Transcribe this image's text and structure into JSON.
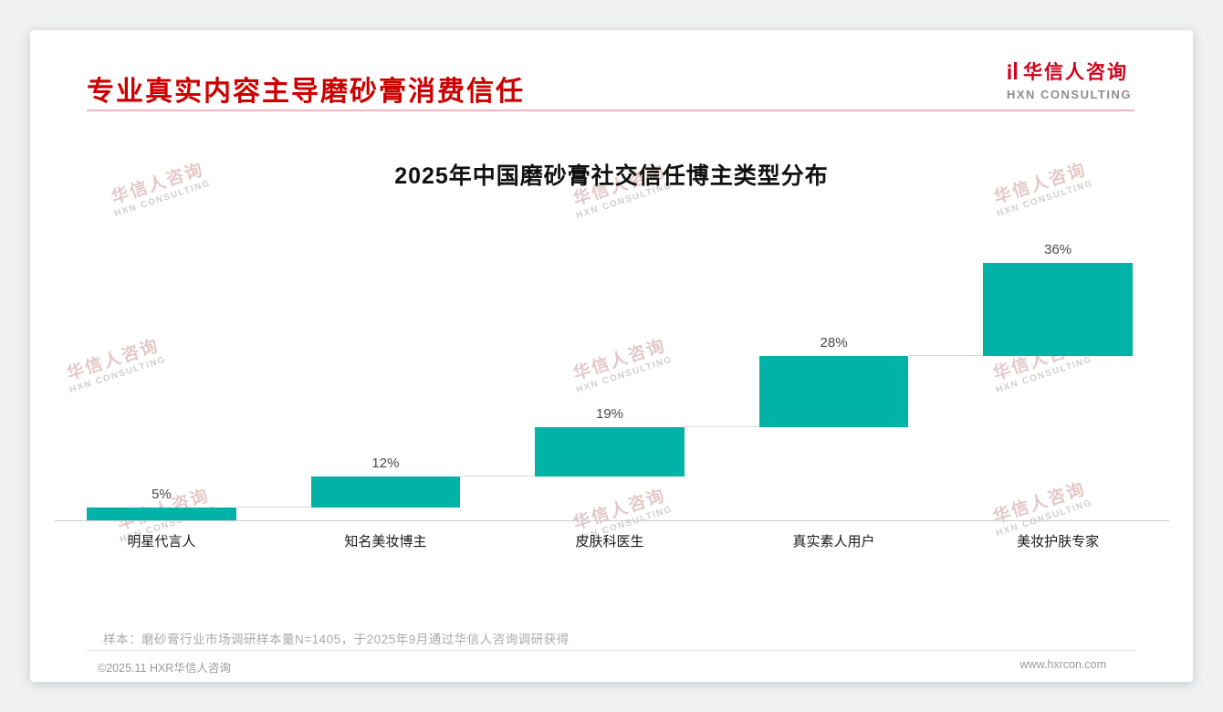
{
  "header": {
    "title": "专业真实内容主导磨砂膏消费信任",
    "logo_cn": "华信人咨询",
    "logo_en": "HXN CONSULTING"
  },
  "watermark": {
    "cn": "华信人咨询",
    "en": "HXN CONSULTING"
  },
  "chart_data": {
    "type": "bar",
    "subtype": "waterfall",
    "title": "2025年中国磨砂膏社交信任博主类型分布",
    "categories": [
      "明星代言人",
      "知名美妆博主",
      "皮肤科医生",
      "真实素人用户",
      "美妆护肤专家"
    ],
    "values": [
      5,
      12,
      19,
      28,
      36
    ],
    "labels": [
      "5%",
      "12%",
      "19%",
      "28%",
      "36%"
    ],
    "cumulative": [
      0,
      5,
      17,
      36,
      64
    ],
    "ylim": [
      0,
      100
    ],
    "grid": false,
    "legend": false,
    "bar_color": "#00b3a6",
    "connector_color": "#d9d9d9",
    "axis_color": "#cccccc",
    "xlabel": "",
    "ylabel": ""
  },
  "note": "样本：磨砂膏行业市场调研样本量N=1405，于2025年9月通过华信人咨询调研获得",
  "footer": {
    "left": "©2025.11 HXR华信人咨询",
    "right": "www.hxrcon.com"
  },
  "colors": {
    "accent_red": "#cc0000",
    "bar_teal": "#00b3a6",
    "divider_pink": "#eab8b8"
  }
}
